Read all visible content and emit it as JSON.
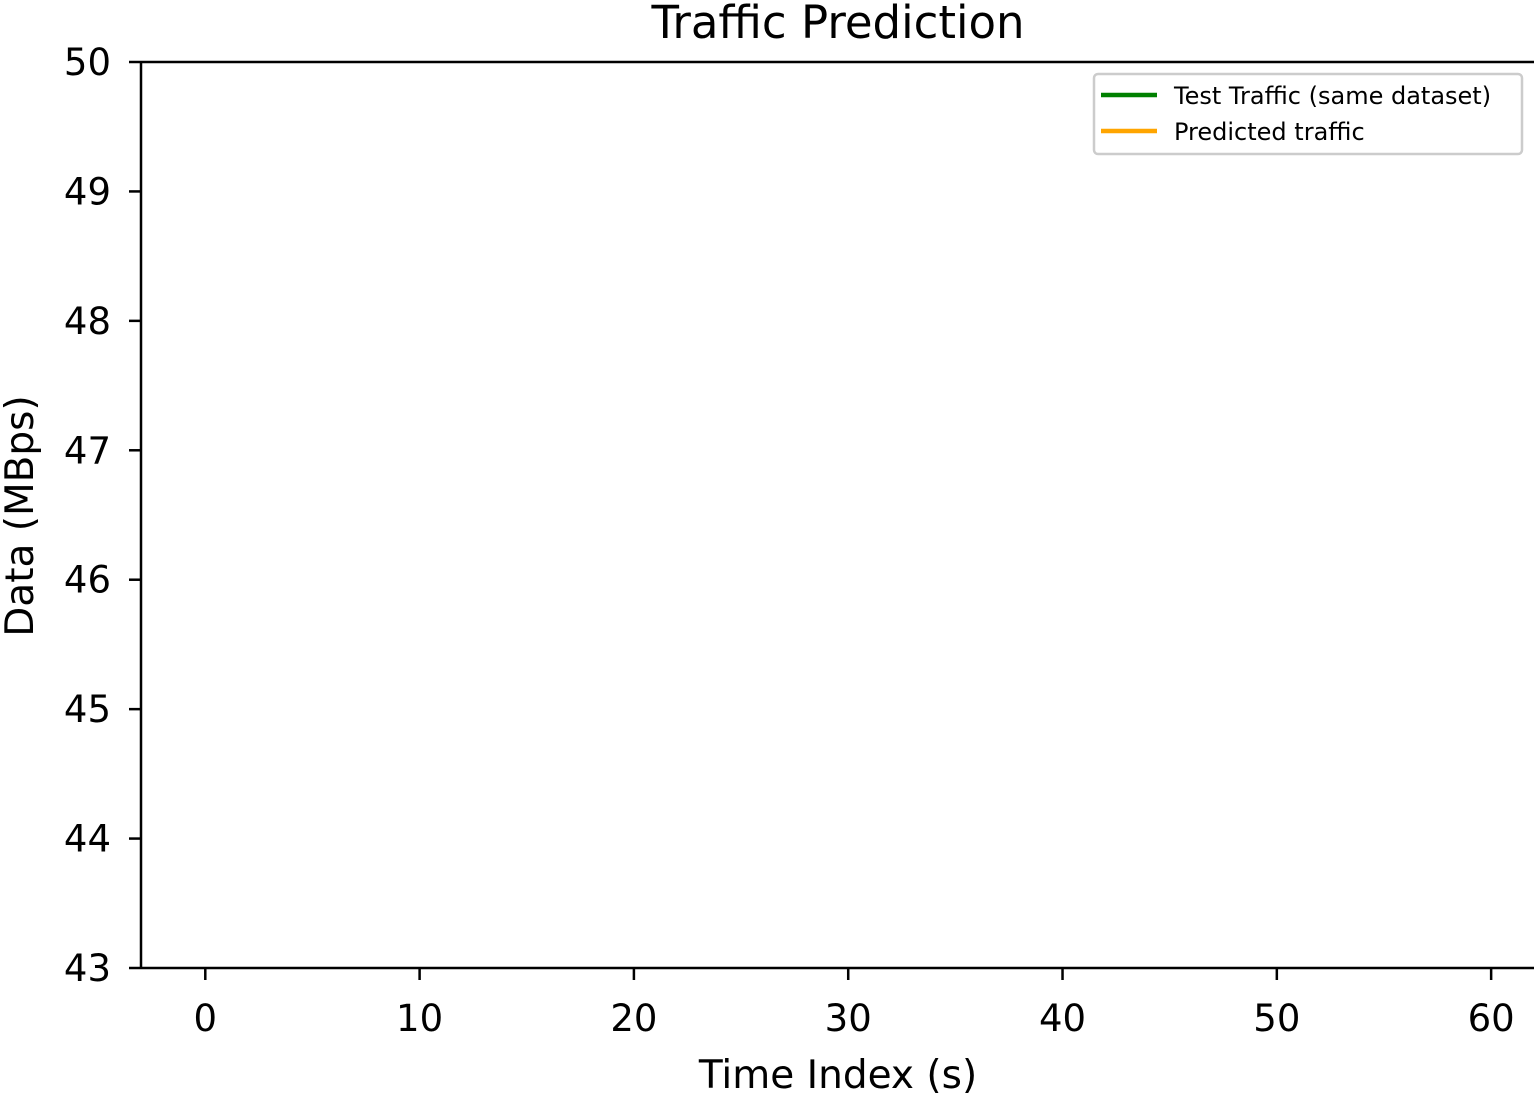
{
  "chart_data": {
    "type": "line",
    "title": "Traffic Prediction",
    "xlabel": "Time Index (s)",
    "ylabel": "Data (MBps)",
    "xlim": [
      -3,
      62
    ],
    "ylim": [
      43,
      50
    ],
    "x_ticks": [
      0,
      10,
      20,
      30,
      40,
      50,
      60
    ],
    "y_ticks": [
      43,
      44,
      45,
      46,
      47,
      48,
      49,
      50
    ],
    "grid": false,
    "legend_position": "upper right",
    "series": [
      {
        "name": "Test Traffic (same dataset)",
        "color": "#008000",
        "x": [],
        "values": []
      },
      {
        "name": "Predicted traffic",
        "color": "#ffa500",
        "x": [],
        "values": []
      }
    ]
  }
}
